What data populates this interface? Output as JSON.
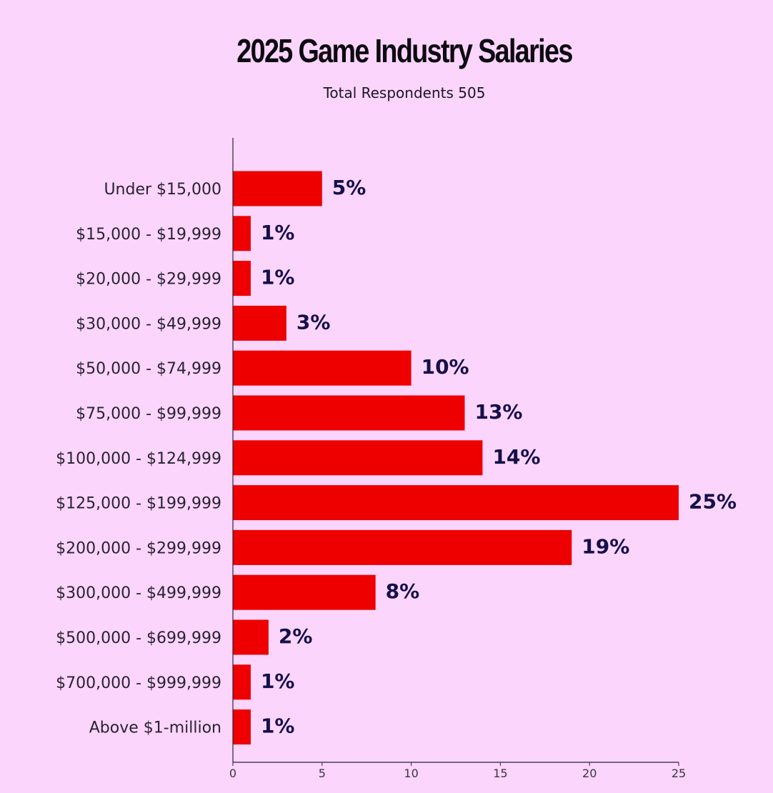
{
  "chart_data": {
    "type": "bar",
    "orientation": "horizontal",
    "title": "2025 Game Industry Salaries",
    "subtitle": "Total Respondents 505",
    "categories": [
      "Under $15,000",
      "$15,000 - $19,999",
      "$20,000 - $29,999",
      "$30,000 - $49,999",
      "$50,000 - $74,999",
      "$75,000 - $99,999",
      "$100,000 - $124,999",
      "$125,000 - $199,999",
      "$200,000 - $299,999",
      "$300,000 - $499,999",
      "$500,000 - $699,999",
      "$700,000 - $999,999",
      "Above $1-million"
    ],
    "values": [
      5,
      1,
      1,
      3,
      10,
      13,
      14,
      25,
      19,
      8,
      2,
      1,
      1
    ],
    "value_labels": [
      "5%",
      "1%",
      "1%",
      "3%",
      "10%",
      "13%",
      "14%",
      "25%",
      "19%",
      "8%",
      "2%",
      "1%",
      "1%"
    ],
    "xlim": [
      0,
      25
    ],
    "xticks": [
      0,
      5,
      10,
      15,
      20,
      25
    ],
    "xtick_labels": [
      "0",
      "5",
      "10",
      "15",
      "20",
      "25"
    ],
    "xlabel": "",
    "ylabel": "",
    "grid": false,
    "colors": {
      "bar": "#ee0000",
      "value_label": "#15104a",
      "background": "#fbd5fb",
      "axis": "#2a2233"
    }
  }
}
